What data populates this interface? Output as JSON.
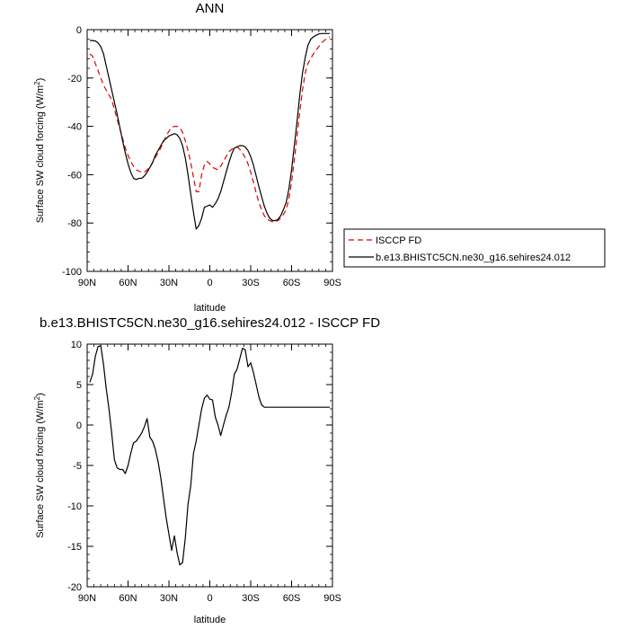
{
  "chart_data": [
    {
      "type": "line",
      "title": "ANN",
      "xlabel": "latitude",
      "ylabel": "Surface SW cloud forcing (W/m²)",
      "ylabel_base": "Surface SW cloud forcing (W/m",
      "ylabel_sup": "2",
      "ylabel_close": ")",
      "xlim": [
        90,
        -90
      ],
      "ylim": [
        -100,
        0
      ],
      "xticks": [
        90,
        60,
        30,
        0,
        -30,
        -60,
        -90
      ],
      "xtick_labels": [
        "90N",
        "60N",
        "30N",
        "0",
        "30S",
        "60S",
        "90S"
      ],
      "yticks": [
        -100,
        -80,
        -60,
        -40,
        -20,
        0
      ],
      "ytick_labels": [
        "-100",
        "-80",
        "-60",
        "-40",
        "-20",
        "0"
      ],
      "legend_position": "right",
      "series": [
        {
          "name": "ISCCP FD",
          "color": "#dd0000",
          "dash": "dashed",
          "x": [
            88,
            86,
            84,
            82,
            80,
            78,
            76,
            74,
            72,
            70,
            68,
            66,
            64,
            62,
            60,
            58,
            56,
            54,
            52,
            50,
            48,
            46,
            44,
            42,
            40,
            38,
            36,
            34,
            32,
            30,
            28,
            26,
            24,
            22,
            20,
            18,
            16,
            14,
            12,
            10,
            8,
            6,
            4,
            2,
            0,
            -2,
            -4,
            -6,
            -8,
            -10,
            -12,
            -14,
            -16,
            -18,
            -20,
            -22,
            -24,
            -26,
            -28,
            -30,
            -32,
            -34,
            -36,
            -38,
            -40,
            -42,
            -44,
            -46,
            -48,
            -50,
            -52,
            -54,
            -56,
            -58,
            -60,
            -62,
            -64,
            -66,
            -68,
            -70,
            -72,
            -74,
            -76,
            -78,
            -80,
            -82,
            -84,
            -86,
            -88
          ],
          "values": [
            -10,
            -11,
            -14,
            -17,
            -20,
            -23,
            -25,
            -27,
            -29,
            -33,
            -37,
            -41,
            -45,
            -49,
            -52,
            -54.5,
            -56.5,
            -58,
            -58.5,
            -59,
            -59,
            -58,
            -57,
            -55,
            -53,
            -51,
            -49,
            -46.5,
            -44,
            -42,
            -40.5,
            -40,
            -40,
            -40.5,
            -42.5,
            -46,
            -50,
            -55,
            -61,
            -67,
            -67,
            -60,
            -56,
            -54.5,
            -55.5,
            -57,
            -57.5,
            -58,
            -56.5,
            -54.5,
            -52.5,
            -50.5,
            -49.5,
            -49,
            -48.5,
            -49.5,
            -51,
            -53,
            -55.5,
            -59,
            -63,
            -67.5,
            -71.5,
            -74.5,
            -77,
            -78.5,
            -79,
            -79.5,
            -79.5,
            -79,
            -78,
            -76.5,
            -74.5,
            -70,
            -63,
            -54,
            -44,
            -34,
            -25,
            -18,
            -14,
            -12,
            -10,
            -8.5,
            -7,
            -5.5,
            -4.5,
            -3.5,
            -3
          ]
        },
        {
          "name": "b.e13.BHISTC5CN.ne30_g16.sehires24.012",
          "color": "#000000",
          "dash": "solid",
          "x": [
            88,
            86,
            84,
            82,
            80,
            78,
            76,
            74,
            72,
            70,
            68,
            66,
            64,
            62,
            60,
            58,
            56,
            54,
            52,
            50,
            48,
            46,
            44,
            42,
            40,
            38,
            36,
            34,
            32,
            30,
            28,
            26,
            24,
            22,
            20,
            18,
            16,
            14,
            12,
            10,
            8,
            6,
            4,
            2,
            0,
            -2,
            -4,
            -6,
            -8,
            -10,
            -12,
            -14,
            -16,
            -18,
            -20,
            -22,
            -24,
            -26,
            -28,
            -30,
            -32,
            -34,
            -36,
            -38,
            -40,
            -42,
            -44,
            -46,
            -48,
            -50,
            -52,
            -54,
            -56,
            -58,
            -60,
            -62,
            -64,
            -66,
            -68,
            -70,
            -72,
            -74,
            -76,
            -78,
            -80,
            -82,
            -84,
            -86,
            -88
          ],
          "values": [
            -4.5,
            -4.5,
            -4.7,
            -5.5,
            -7,
            -10,
            -15,
            -20,
            -25,
            -30,
            -35,
            -40.5,
            -46,
            -51,
            -55.5,
            -59,
            -61.5,
            -62,
            -61.5,
            -61.5,
            -60.5,
            -59,
            -57,
            -55,
            -52,
            -50,
            -48,
            -46,
            -45,
            -44,
            -43.5,
            -43,
            -43.5,
            -45,
            -48,
            -53,
            -60,
            -68,
            -75.5,
            -82.5,
            -81,
            -78,
            -73.5,
            -73,
            -72.5,
            -73.5,
            -72,
            -70,
            -67,
            -63,
            -59,
            -55,
            -51.5,
            -49,
            -48.5,
            -48,
            -48,
            -48.5,
            -50,
            -52.5,
            -56,
            -60.5,
            -65,
            -69,
            -73,
            -76,
            -78,
            -79,
            -79,
            -78.5,
            -77,
            -74.5,
            -71.5,
            -66,
            -58,
            -48,
            -38,
            -27,
            -18,
            -11.5,
            -6.5,
            -4,
            -3,
            -2.3,
            -1.8,
            -1.6,
            -1.6,
            -1.6,
            -1.6
          ]
        }
      ]
    },
    {
      "type": "line",
      "title": "b.e13.BHISTC5CN.ne30_g16.sehires24.012 - ISCCP FD",
      "xlabel": "latitude",
      "ylabel": "Surface SW cloud forcing (W/m²)",
      "ylabel_base": "Surface SW cloud forcing (W/m",
      "ylabel_sup": "2",
      "ylabel_close": ")",
      "xlim": [
        90,
        -90
      ],
      "ylim": [
        -20,
        10
      ],
      "xticks": [
        90,
        60,
        30,
        0,
        -30,
        -60,
        -90
      ],
      "xtick_labels": [
        "90N",
        "60N",
        "30N",
        "0",
        "30S",
        "60S",
        "90S"
      ],
      "yticks": [
        -20,
        -15,
        -10,
        -5,
        0,
        5,
        10
      ],
      "ytick_labels": [
        "-20",
        "-15",
        "-10",
        "-5",
        "0",
        "5",
        "10"
      ],
      "series": [
        {
          "color": "#000000",
          "dash": "solid",
          "x": [
            88,
            86,
            84,
            82,
            80,
            78,
            76,
            74,
            72,
            70,
            68,
            66,
            64,
            62,
            60,
            58,
            56,
            54,
            52,
            50,
            48,
            46,
            44,
            42,
            40,
            38,
            36,
            34,
            32,
            30,
            28,
            26,
            24,
            22,
            20,
            18,
            16,
            14,
            12,
            10,
            8,
            6,
            4,
            2,
            0,
            -2,
            -4,
            -6,
            -8,
            -10,
            -12,
            -14,
            -16,
            -18,
            -20,
            -22,
            -24,
            -26,
            -28,
            -30,
            -32,
            -34,
            -36,
            -38,
            -40,
            -42,
            -44,
            -46,
            -48,
            -50,
            -52,
            -54,
            -56,
            -58,
            -60,
            -62,
            -64,
            -66,
            -68,
            -70,
            -72,
            -74,
            -76,
            -78,
            -80,
            -82,
            -84,
            -86,
            -88
          ],
          "values": [
            5.3,
            6.3,
            8.5,
            9.7,
            9.8,
            7.5,
            4.5,
            2,
            -1,
            -4.3,
            -5.3,
            -5.5,
            -5.5,
            -6,
            -5,
            -3.5,
            -2.2,
            -2,
            -1.5,
            -1,
            -0.2,
            0.8,
            -1.5,
            -2,
            -3,
            -4.5,
            -6.5,
            -9,
            -11.5,
            -13.5,
            -15.5,
            -13.7,
            -15.8,
            -17.3,
            -17,
            -14,
            -9.8,
            -7.5,
            -3.5,
            -2,
            0,
            2,
            3.3,
            3.7,
            3.2,
            3.1,
            1,
            0,
            -1.3,
            0,
            1.2,
            2.2,
            4,
            6.3,
            6.9,
            8.2,
            9.5,
            9.3,
            7.2,
            7.7,
            6.5,
            5,
            3.5,
            2.5,
            2.2,
            2.2,
            2.2,
            2.2,
            2.2,
            2.2,
            2.2,
            2.2,
            2.2,
            2.2,
            2.2,
            2.2,
            2.2,
            2.2,
            2.2,
            2.2,
            2.2,
            2.2,
            2.2,
            2.2,
            2.2,
            2.2,
            2.2,
            2.2,
            2.2
          ]
        }
      ]
    }
  ]
}
